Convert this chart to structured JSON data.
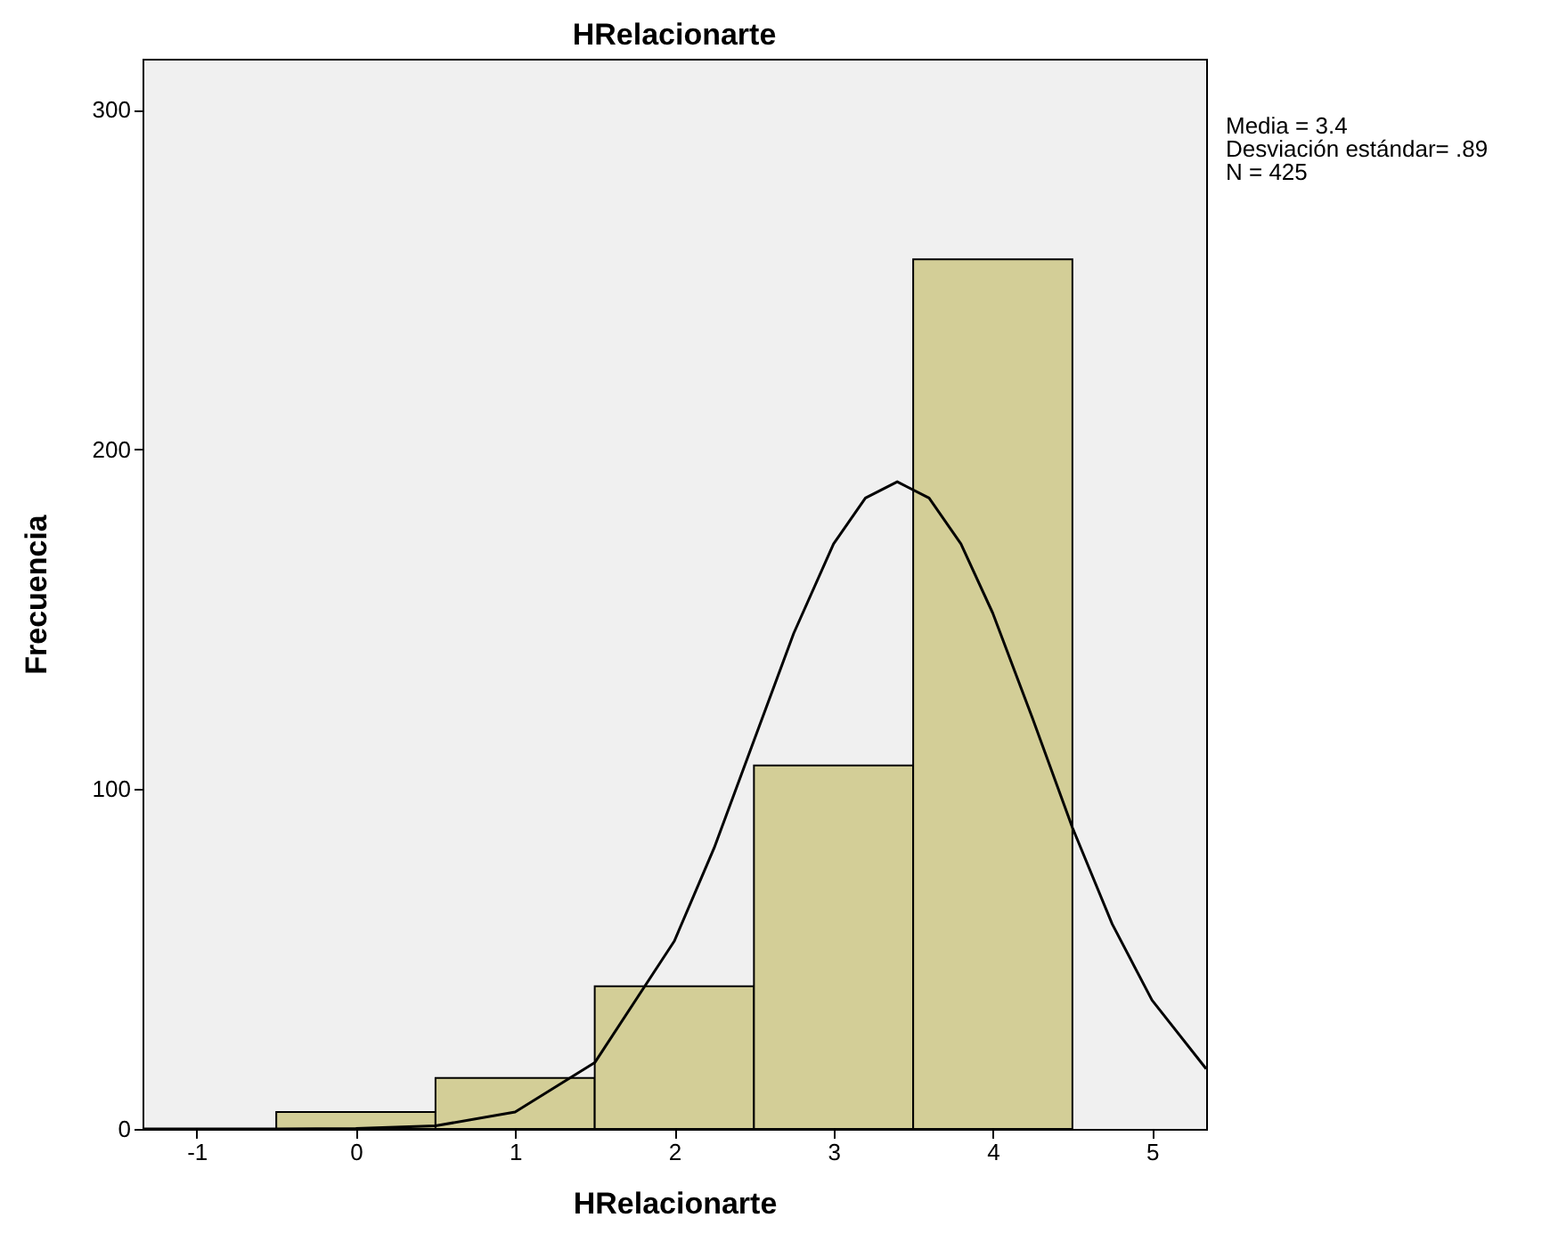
{
  "chart_data": {
    "type": "histogram",
    "title": "HRelacionarte",
    "xlabel": "HRelacionarte",
    "ylabel": "Frecuencia",
    "annotations": [
      "Media = 3.4",
      "Desviación estándar= .89",
      "N = 425"
    ],
    "bins": [
      -0.5,
      0.5,
      1.5,
      2.5,
      3.5,
      4.5
    ],
    "values": [
      5,
      15,
      42,
      107,
      256
    ],
    "color": "#d3ce97",
    "xlim": [
      -1.34,
      5.34
    ],
    "xticks": [
      -1,
      0,
      1,
      2,
      3,
      4,
      5
    ],
    "ylim": [
      0,
      315
    ],
    "yticks": [
      0,
      100,
      200,
      300
    ],
    "series": [
      {
        "type": "line",
        "color": "#000000",
        "x": [
          -1.34,
          -0.5,
          0,
          0.5,
          1,
          1.5,
          2,
          2.25,
          2.5,
          2.75,
          3,
          3.2,
          3.4,
          3.6,
          3.8,
          4,
          4.25,
          4.5,
          4.75,
          5,
          5.34
        ],
        "values": [
          0,
          0,
          0.1,
          0.9,
          5,
          19.5,
          55.3,
          82.7,
          114.3,
          145.9,
          172.2,
          185.7,
          190.5,
          185.7,
          172.2,
          151.8,
          120.8,
          88.7,
          60.3,
          37.9,
          17.7
        ]
      }
    ]
  }
}
